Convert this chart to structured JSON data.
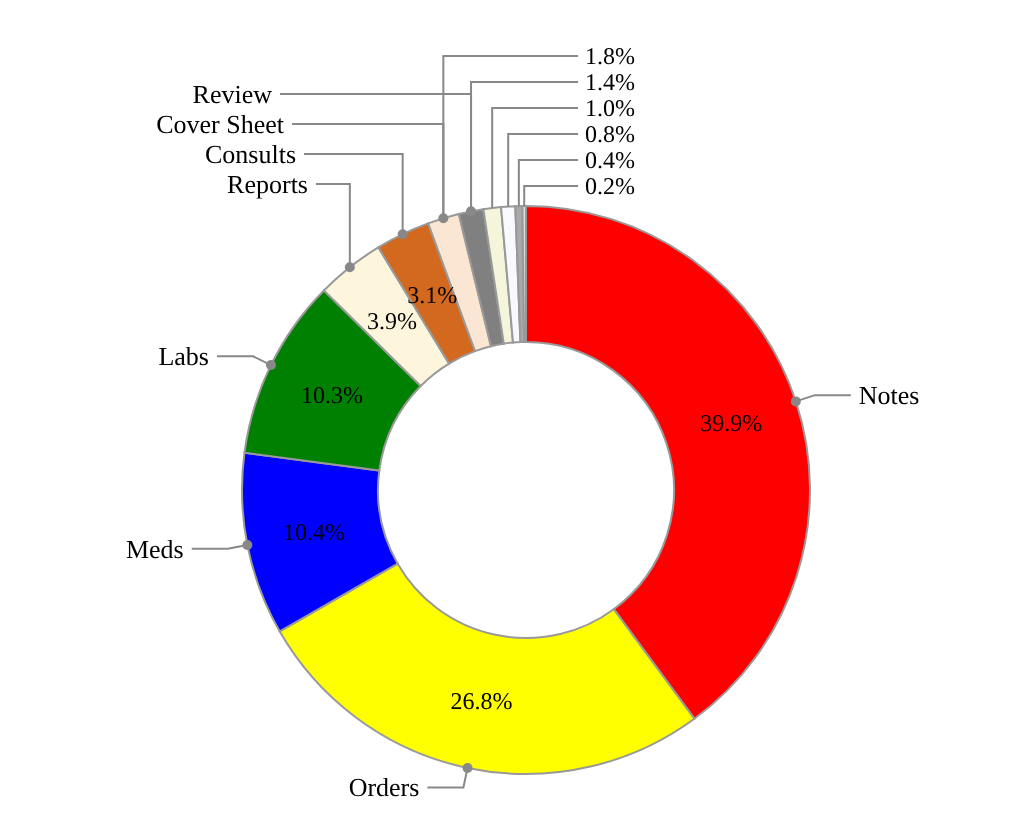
{
  "chart_data": {
    "type": "donut",
    "categories": [
      "Notes",
      "Orders",
      "Meds",
      "Labs",
      "Reports",
      "Consults",
      "Cover Sheet",
      "Review",
      null,
      null,
      null,
      null
    ],
    "values": [
      39.9,
      26.8,
      10.4,
      10.3,
      3.9,
      3.1,
      1.8,
      1.4,
      1.0,
      0.8,
      0.4,
      0.2
    ],
    "colors": [
      "#ff0000",
      "#ffff00",
      "#0000ff",
      "#008000",
      "#fdf6dc",
      "#d2691e",
      "#fae6d2",
      "#808080",
      "#f5f5dc",
      "#f8f8ff",
      "#a9a9a9",
      "#e0e0e0"
    ],
    "value_labels": [
      "39.9%",
      "26.8%",
      "10.4%",
      "10.3%",
      "3.9%",
      "3.1%",
      "1.8%",
      "1.4%",
      "1.0%",
      "0.8%",
      "0.4%",
      "0.2%"
    ]
  }
}
